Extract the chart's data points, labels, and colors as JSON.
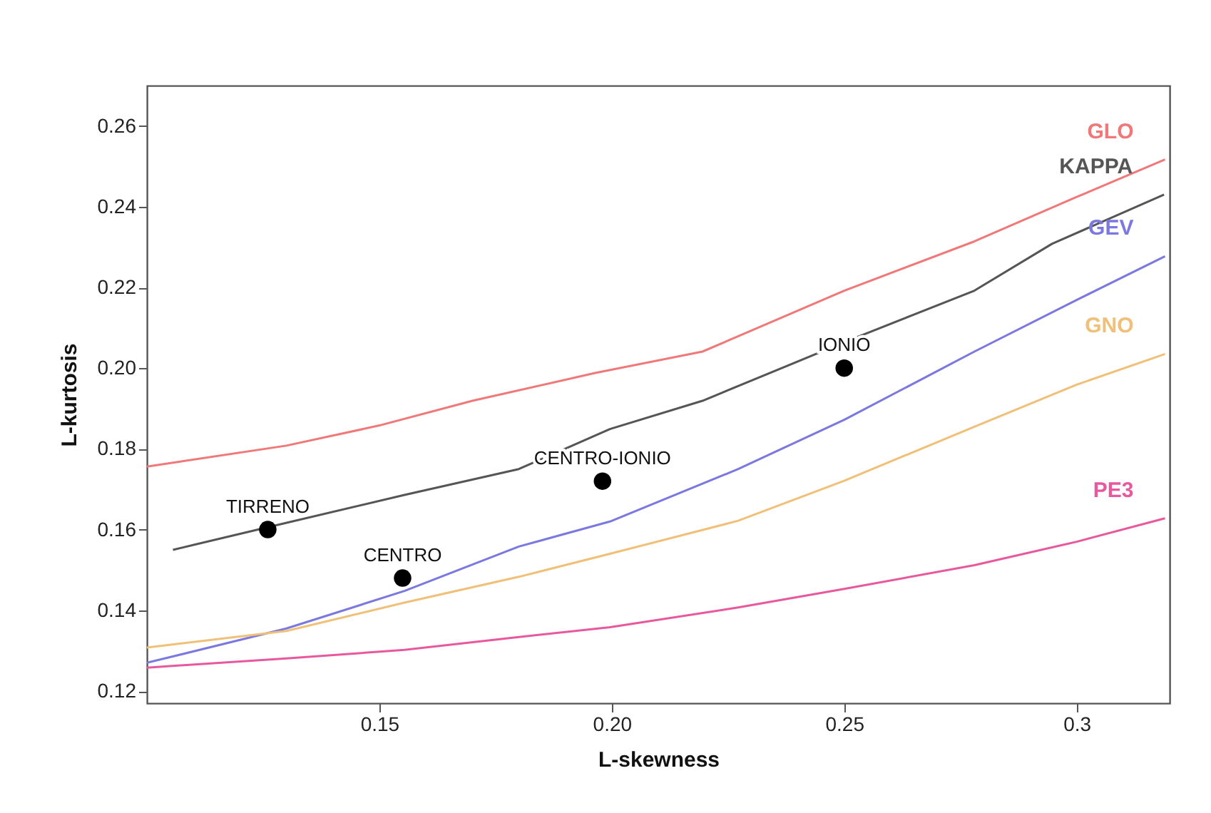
{
  "chart_data": {
    "type": "line",
    "xlabel": "L-skewness",
    "ylabel": "L-kurtosis",
    "xlim": [
      0.1,
      0.32
    ],
    "ylim": [
      0.117,
      0.27
    ],
    "xticks": [
      0.15,
      {
        "value": 0.2,
        "label": "0.20"
      },
      0.25,
      0.3
    ],
    "yticks": [
      0.12,
      0.14,
      0.16,
      0.18,
      {
        "value": 0.2,
        "label": "0.20"
      },
      0.22,
      0.24,
      0.26
    ],
    "grid": false,
    "series": [
      {
        "name": "GLO",
        "color": "#f07878",
        "x": [
          0.1,
          0.13,
          0.15,
          0.17,
          0.1964,
          0.2195,
          0.25,
          0.278,
          0.3,
          0.319
        ],
        "values": [
          0.1756,
          0.1808,
          0.1858,
          0.1919,
          0.1988,
          0.2041,
          0.2192,
          0.2314,
          0.2424,
          0.2517
        ]
      },
      {
        "name": "KAPPA",
        "color": "#555555",
        "x": [
          0.1056,
          0.1257,
          0.1554,
          0.18,
          0.1996,
          0.2195,
          0.25,
          0.278,
          0.2947,
          0.3188
        ],
        "values": [
          0.155,
          0.1605,
          0.1686,
          0.175,
          0.1849,
          0.1919,
          0.2064,
          0.2192,
          0.2308,
          0.243
        ]
      },
      {
        "name": "GEV",
        "color": "#7b78e0",
        "x": [
          0.1,
          0.13,
          0.1554,
          0.18,
          0.1996,
          0.2272,
          0.25,
          0.278,
          0.3,
          0.319
        ],
        "values": [
          0.127,
          0.1355,
          0.1448,
          0.1558,
          0.162,
          0.175,
          0.1872,
          0.2041,
          0.2169,
          0.2277
        ]
      },
      {
        "name": "GNO",
        "color": "#f0c078",
        "x": [
          0.1,
          0.13,
          0.1554,
          0.18,
          0.1996,
          0.2272,
          0.25,
          0.278,
          0.3,
          0.319
        ],
        "values": [
          0.1308,
          0.1349,
          0.1419,
          0.1483,
          0.154,
          0.1622,
          0.1721,
          0.1855,
          0.1959,
          0.2035
        ]
      },
      {
        "name": "PE3",
        "color": "#e8589c",
        "x": [
          0.1,
          0.13,
          0.1554,
          0.18,
          0.1996,
          0.2272,
          0.25,
          0.278,
          0.3,
          0.319
        ],
        "values": [
          0.1258,
          0.1281,
          0.1302,
          0.1334,
          0.1358,
          0.1407,
          0.1453,
          0.1512,
          0.157,
          0.1628
        ]
      },
      {
        "type": "scatter",
        "marker": "circle",
        "color": "#000000",
        "x": [
          0.126,
          0.155,
          0.198,
          0.25
        ],
        "values": [
          0.16,
          0.148,
          0.172,
          0.2
        ]
      }
    ],
    "annotations": [
      {
        "text": "TIRRENO",
        "x": 0.126,
        "y": 0.16
      },
      {
        "text": "CENTRO",
        "x": 0.155,
        "y": 0.148
      },
      {
        "text": "CENTRO-IONIO",
        "x": 0.198,
        "y": 0.172
      },
      {
        "text": "IONIO",
        "x": 0.25,
        "y": 0.2
      }
    ]
  }
}
